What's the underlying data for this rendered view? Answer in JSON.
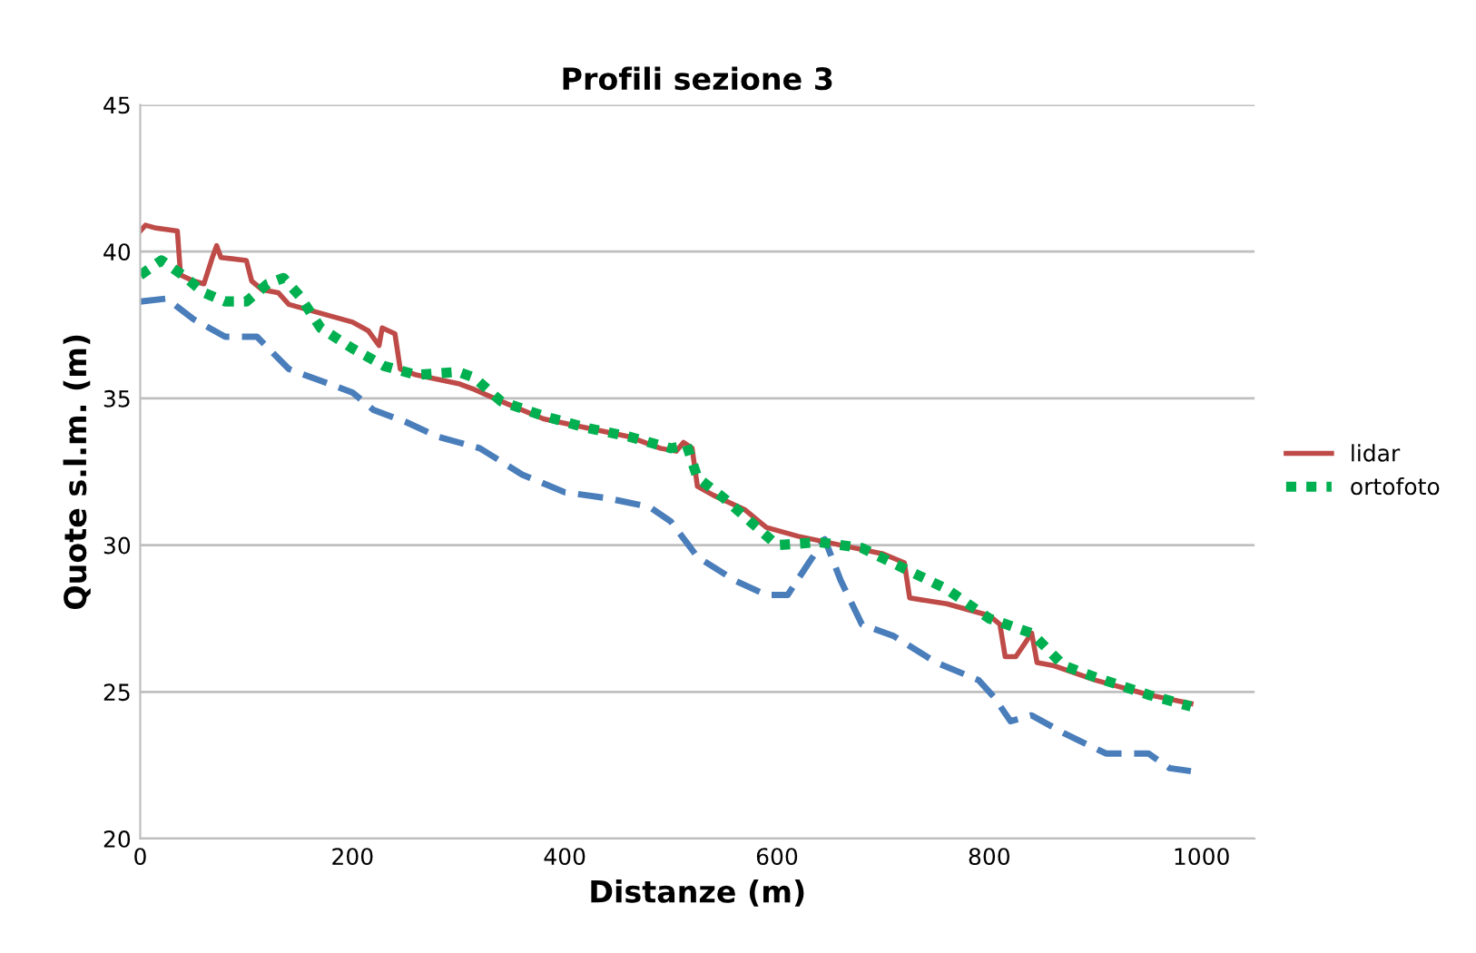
{
  "chart_data": {
    "type": "line",
    "title": "Profili sezione 3",
    "xlabel": "Distanze (m)",
    "ylabel": "Quote s.l.m. (m)",
    "xlim": [
      0,
      1050
    ],
    "xticks": [
      0,
      200,
      400,
      600,
      800,
      1000
    ],
    "ylim": [
      20,
      45
    ],
    "yticks": [
      20,
      25,
      30,
      35,
      40,
      45
    ],
    "grid": "y",
    "legend": "right",
    "series": [
      {
        "color": "#4a7ebb",
        "line_style": "dashed",
        "x": [
          0,
          25,
          50,
          80,
          110,
          140,
          170,
          200,
          220,
          250,
          280,
          320,
          360,
          400,
          440,
          480,
          500,
          525,
          560,
          590,
          610,
          630,
          645,
          660,
          680,
          710,
          750,
          790,
          805,
          820,
          840,
          870,
          910,
          950,
          970,
          990
        ],
        "values": [
          38.3,
          38.4,
          37.7,
          37.1,
          37.1,
          36.0,
          35.6,
          35.2,
          34.6,
          34.2,
          33.7,
          33.3,
          32.4,
          31.8,
          31.6,
          31.3,
          30.8,
          29.6,
          28.8,
          28.3,
          28.3,
          29.4,
          30.2,
          28.8,
          27.3,
          26.9,
          26.0,
          25.4,
          24.8,
          24.0,
          24.2,
          23.6,
          22.9,
          22.9,
          22.4,
          22.3
        ]
      },
      {
        "name": "lidar",
        "color": "#be4b48",
        "line_style": "solid",
        "x": [
          0,
          5,
          15,
          35,
          38,
          50,
          60,
          68,
          72,
          76,
          100,
          105,
          115,
          130,
          140,
          180,
          200,
          215,
          225,
          228,
          240,
          245,
          260,
          300,
          315,
          340,
          380,
          420,
          460,
          490,
          505,
          512,
          520,
          525,
          540,
          570,
          590,
          620,
          660,
          700,
          720,
          725,
          760,
          800,
          810,
          815,
          825,
          840,
          845,
          860,
          900,
          950,
          990
        ],
        "values": [
          40.7,
          40.9,
          40.8,
          40.7,
          39.2,
          39.0,
          38.9,
          39.8,
          40.2,
          39.8,
          39.7,
          39.0,
          38.7,
          38.6,
          38.2,
          37.8,
          37.6,
          37.3,
          36.8,
          37.4,
          37.2,
          36.0,
          35.8,
          35.5,
          35.3,
          34.9,
          34.3,
          34.0,
          33.7,
          33.3,
          33.2,
          33.5,
          33.3,
          32.0,
          31.7,
          31.2,
          30.6,
          30.3,
          30.0,
          29.7,
          29.4,
          28.2,
          28.0,
          27.6,
          27.3,
          26.2,
          26.2,
          27.0,
          26.0,
          25.9,
          25.4,
          24.9,
          24.6
        ]
      },
      {
        "name": "ortofoto",
        "color": "#00b050",
        "line_style": "dotted",
        "x": [
          0,
          20,
          40,
          60,
          80,
          100,
          120,
          135,
          150,
          170,
          200,
          230,
          260,
          300,
          315,
          340,
          380,
          420,
          460,
          500,
          515,
          525,
          550,
          575,
          600,
          640,
          680,
          720,
          760,
          800,
          840,
          870,
          900,
          950,
          990
        ],
        "values": [
          39.2,
          39.7,
          39.2,
          38.6,
          38.3,
          38.3,
          38.9,
          39.1,
          38.5,
          37.4,
          36.7,
          36.1,
          35.8,
          35.9,
          35.7,
          34.9,
          34.4,
          34.0,
          33.7,
          33.3,
          33.4,
          32.3,
          31.6,
          30.8,
          30.0,
          30.1,
          29.9,
          29.2,
          28.5,
          27.5,
          27.0,
          25.9,
          25.5,
          24.9,
          24.5
        ]
      }
    ]
  }
}
